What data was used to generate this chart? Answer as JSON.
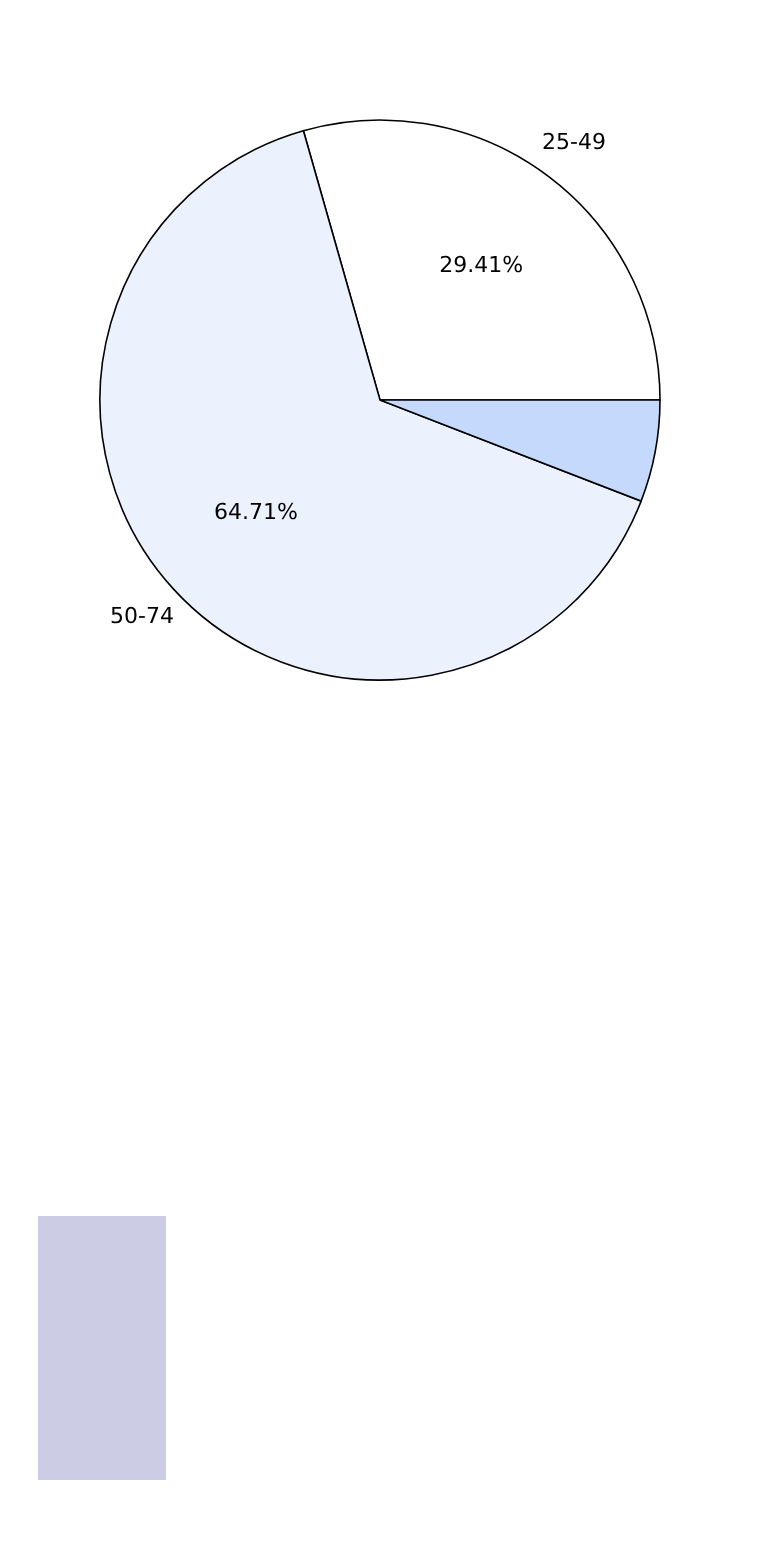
{
  "chart_data": {
    "type": "pie",
    "categories": [
      "25-49",
      "50-74",
      null
    ],
    "values": [
      29.41,
      64.71,
      5.88
    ],
    "value_labels": [
      "29.41%",
      "64.71%",
      null
    ],
    "colors": [
      "#ffffff",
      "#ebf2fe",
      "#c5d9fd"
    ]
  }
}
